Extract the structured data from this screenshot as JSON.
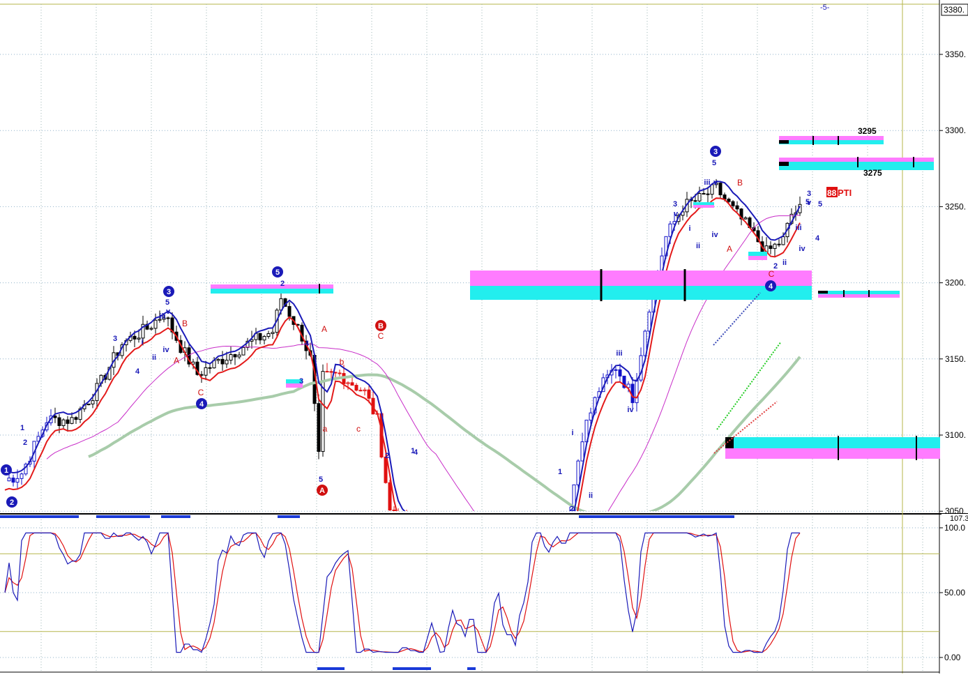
{
  "chart_data": [
    {
      "type": "candlestick",
      "ylim": [
        3050,
        3380
      ],
      "y_ticks": [
        {
          "value": 3350,
          "label": "3350."
        },
        {
          "value": 3300,
          "label": "3300."
        },
        {
          "value": 3250,
          "label": "3250."
        },
        {
          "value": 3200,
          "label": "3200."
        },
        {
          "value": 3150,
          "label": "3150."
        },
        {
          "value": 3100,
          "label": "3100."
        },
        {
          "value": 3050,
          "label": "3050."
        }
      ],
      "current_price_label": "3380.",
      "top_marker": "-5-",
      "grid": true,
      "price_labels": [
        {
          "text": "3295",
          "value": 3295
        },
        {
          "text": "3275",
          "value": 3275
        }
      ],
      "pti": {
        "value": "88",
        "label": "PTI"
      },
      "wave_labels_blue": [
        "1",
        "2",
        "3",
        "4",
        "5",
        "i",
        "ii",
        "iii",
        "iv",
        "v"
      ],
      "wave_labels_red": [
        "A",
        "B",
        "C",
        "a",
        "b",
        "c"
      ],
      "circled_labels": [
        {
          "text": "1",
          "color": "blue"
        },
        {
          "text": "2",
          "color": "blue"
        },
        {
          "text": "3",
          "color": "blue"
        },
        {
          "text": "4",
          "color": "blue"
        },
        {
          "text": "5",
          "color": "blue"
        },
        {
          "text": "3",
          "color": "blue"
        },
        {
          "text": "4",
          "color": "blue"
        },
        {
          "text": "A",
          "color": "red"
        },
        {
          "text": "B",
          "color": "red"
        }
      ],
      "colors": {
        "candle": "#000000",
        "up_trend": "#1010c8",
        "down_trend": "#e01010",
        "fast_ma": "#1a1ab8",
        "slow_ma": "#e31a1a",
        "long_ma": "#c82cc8",
        "longest_ma": "#a8ccaa",
        "zone_magenta": "#ff7cff",
        "zone_cyan": "#22eeee"
      }
    },
    {
      "type": "line",
      "ylim": [
        0,
        100
      ],
      "y_ticks": [
        {
          "value": 100,
          "label": "100.0"
        },
        {
          "value": 50,
          "label": "50.00"
        },
        {
          "value": 0,
          "label": "0.00"
        }
      ],
      "top_label": "107.3",
      "reference_lines": [
        80,
        20
      ],
      "series": [
        {
          "color": "#1a1ab8"
        },
        {
          "color": "#e01010"
        }
      ]
    }
  ]
}
